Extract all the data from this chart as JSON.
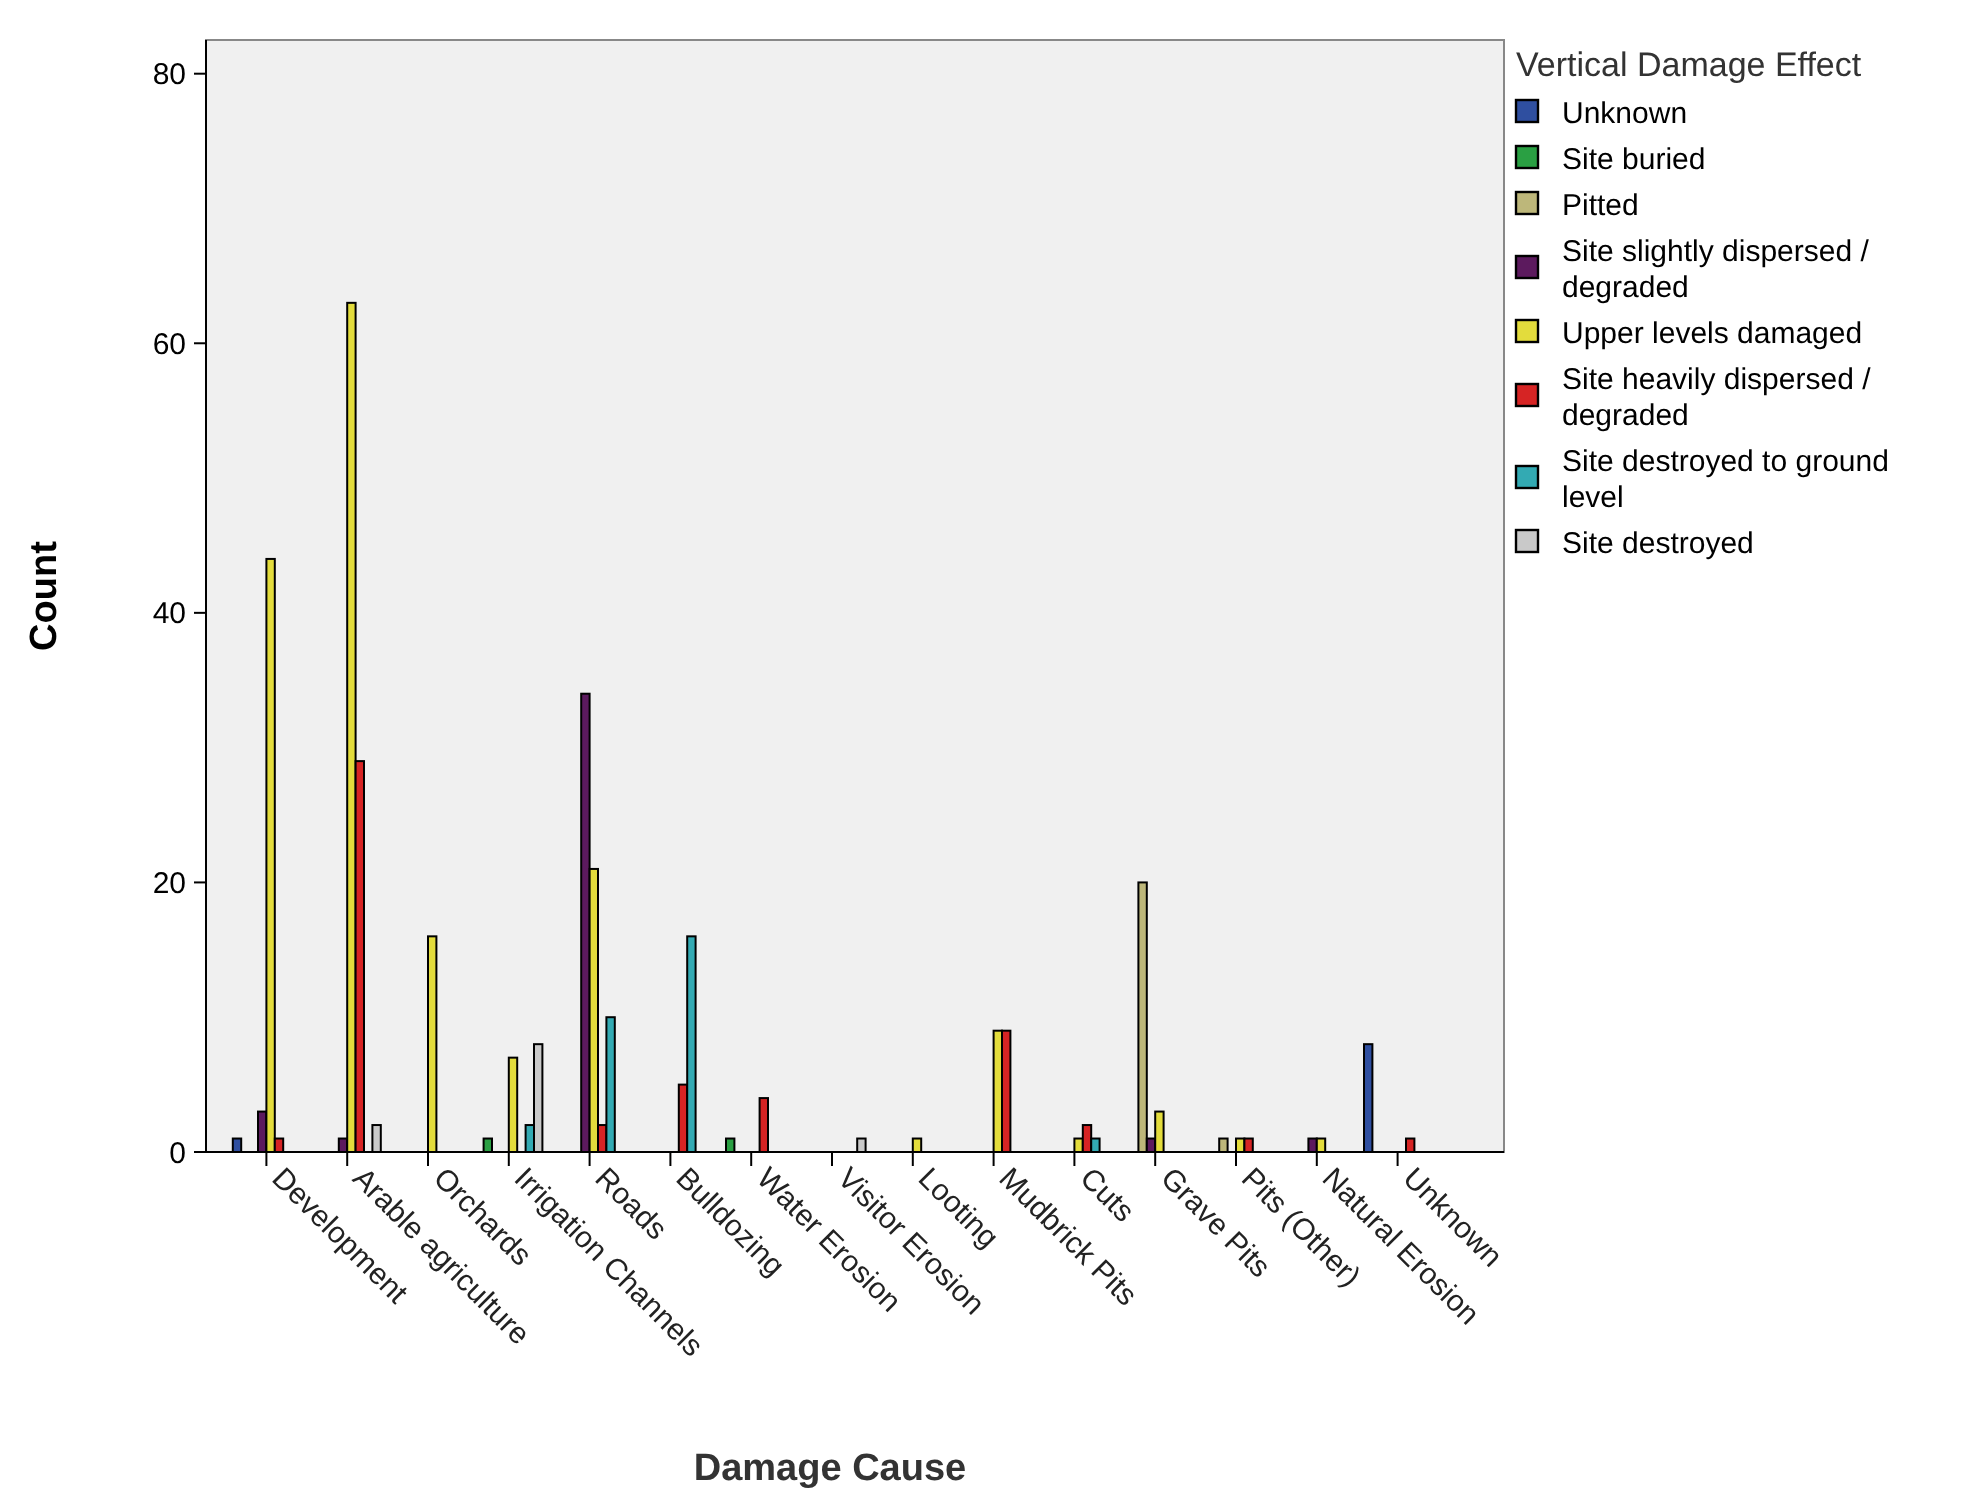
{
  "chart_data": {
    "type": "bar",
    "xlabel": "Damage Cause",
    "ylabel": "Count",
    "legend_title": "Vertical Damage Effect",
    "legend": "right",
    "grid": false,
    "categories": [
      "Development",
      "Arable agriculture",
      "Orchards",
      "Irrigation Channels",
      "Roads",
      "Bulldozing",
      "Water Erosion",
      "Visitor Erosion",
      "Looting",
      "Mudbrick Pits",
      "Cuts",
      "Grave Pits",
      "Pits (Other)",
      "Natural Erosion",
      "Unknown"
    ],
    "ylim": [
      0,
      82.5
    ],
    "yticks": [
      0,
      20,
      40,
      60,
      80
    ],
    "series": [
      {
        "name": "Unknown",
        "color": "#2f4fa0",
        "values": [
          1,
          0,
          0,
          0,
          0,
          0,
          0,
          0,
          0,
          0,
          0,
          0,
          0,
          0,
          8
        ]
      },
      {
        "name": "Site buried",
        "color": "#2aa043",
        "values": [
          0,
          0,
          0,
          1,
          0,
          0,
          1,
          0,
          0,
          0,
          0,
          0,
          0,
          0,
          0
        ]
      },
      {
        "name": "Pitted",
        "color": "#bdb77a",
        "values": [
          0,
          0,
          0,
          0,
          0,
          0,
          0,
          0,
          0,
          0,
          0,
          20,
          1,
          0,
          0
        ]
      },
      {
        "name": "Site slightly dispersed / degraded",
        "color": "#5c1a5e",
        "values": [
          3,
          1,
          0,
          0,
          34,
          0,
          0,
          0,
          0,
          0,
          0,
          1,
          0,
          1,
          0
        ]
      },
      {
        "name": "Upper levels damaged",
        "color": "#e3dc3c",
        "values": [
          44,
          63,
          16,
          7,
          21,
          0,
          0,
          0,
          1,
          9,
          1,
          3,
          1,
          1,
          0
        ]
      },
      {
        "name": "Site heavily dispersed / degraded",
        "color": "#d62424",
        "values": [
          1,
          29,
          0,
          0,
          2,
          5,
          4,
          0,
          0,
          9,
          2,
          0,
          1,
          0,
          1
        ]
      },
      {
        "name": "Site destroyed to ground level",
        "color": "#33aab3",
        "values": [
          0,
          0,
          0,
          2,
          10,
          16,
          0,
          0,
          0,
          0,
          1,
          0,
          0,
          0,
          0
        ]
      },
      {
        "name": "Site destroyed",
        "color": "#c9c9c9",
        "values": [
          0,
          2,
          0,
          8,
          0,
          0,
          0,
          1,
          0,
          0,
          0,
          0,
          0,
          0,
          0
        ]
      }
    ]
  }
}
